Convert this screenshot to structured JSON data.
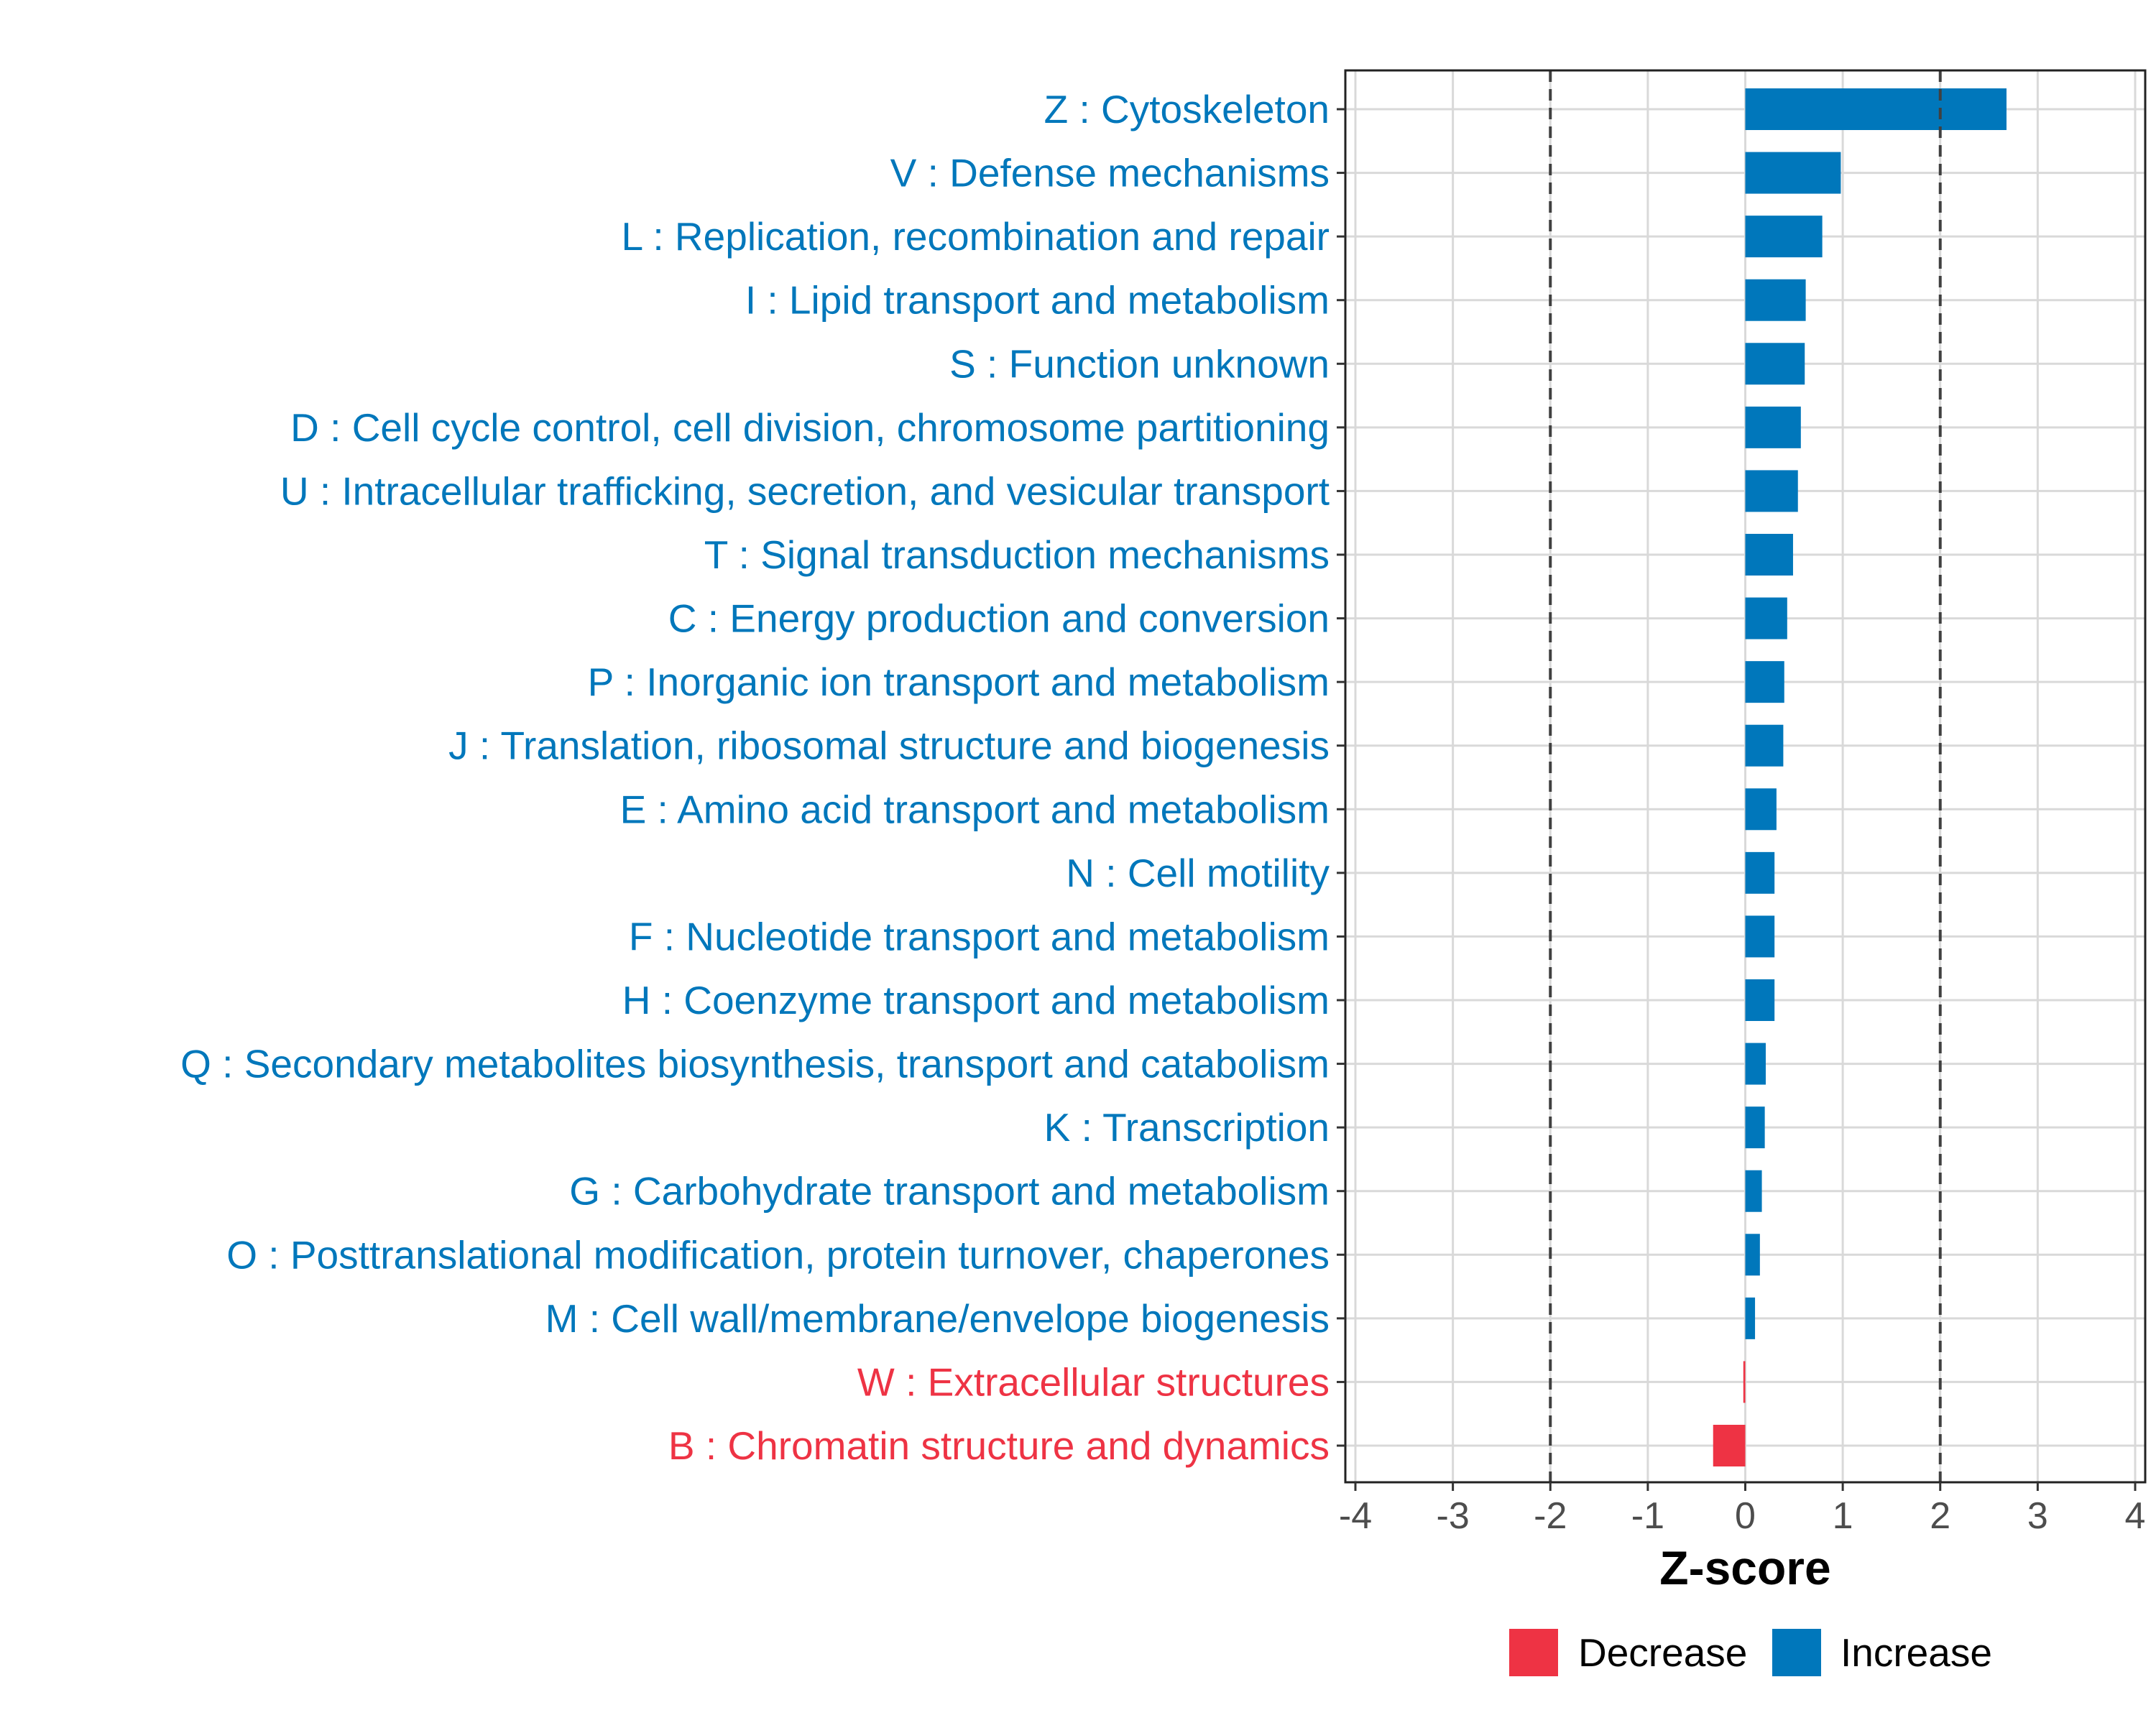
{
  "chart_data": {
    "type": "bar",
    "orientation": "horizontal",
    "xlabel": "Z-score",
    "ylabel": "",
    "xlim": [
      -4,
      4
    ],
    "x_ticks": [
      -4,
      -3,
      -2,
      -1,
      0,
      1,
      2,
      3,
      4
    ],
    "x_tick_labels": [
      "-4",
      "-3",
      "-2",
      "-1",
      "0",
      "1",
      "2",
      "3",
      "4"
    ],
    "grid": true,
    "reference_lines": [
      -2,
      2
    ],
    "colors": {
      "Increase": "#0077BB",
      "Decrease": "#EE3344"
    },
    "legend": {
      "position": "bottom",
      "entries": [
        {
          "label": "Decrease",
          "color": "#EE3344"
        },
        {
          "label": "Increase",
          "color": "#0077BB"
        }
      ]
    },
    "categories": [
      {
        "label": "Z : Cytoskeleton",
        "value": 2.68,
        "direction": "Increase"
      },
      {
        "label": "V : Defense mechanisms",
        "value": 0.98,
        "direction": "Increase"
      },
      {
        "label": "L : Replication, recombination and repair",
        "value": 0.79,
        "direction": "Increase"
      },
      {
        "label": "I : Lipid transport and metabolism",
        "value": 0.62,
        "direction": "Increase"
      },
      {
        "label": "S : Function unknown",
        "value": 0.61,
        "direction": "Increase"
      },
      {
        "label": "D : Cell cycle control, cell division, chromosome partitioning",
        "value": 0.57,
        "direction": "Increase"
      },
      {
        "label": "U : Intracellular trafficking, secretion, and vesicular transport",
        "value": 0.54,
        "direction": "Increase"
      },
      {
        "label": "T : Signal transduction mechanisms",
        "value": 0.49,
        "direction": "Increase"
      },
      {
        "label": "C : Energy production and conversion",
        "value": 0.43,
        "direction": "Increase"
      },
      {
        "label": "P : Inorganic ion transport and metabolism",
        "value": 0.4,
        "direction": "Increase"
      },
      {
        "label": "J : Translation, ribosomal structure and biogenesis",
        "value": 0.39,
        "direction": "Increase"
      },
      {
        "label": "E : Amino acid transport and metabolism",
        "value": 0.32,
        "direction": "Increase"
      },
      {
        "label": "N : Cell motility",
        "value": 0.3,
        "direction": "Increase"
      },
      {
        "label": "F : Nucleotide transport and metabolism",
        "value": 0.3,
        "direction": "Increase"
      },
      {
        "label": "H : Coenzyme transport and metabolism",
        "value": 0.3,
        "direction": "Increase"
      },
      {
        "label": "Q : Secondary metabolites biosynthesis, transport and catabolism",
        "value": 0.21,
        "direction": "Increase"
      },
      {
        "label": "K : Transcription",
        "value": 0.2,
        "direction": "Increase"
      },
      {
        "label": "G : Carbohydrate transport and metabolism",
        "value": 0.17,
        "direction": "Increase"
      },
      {
        "label": "O : Posttranslational modification, protein turnover, chaperones",
        "value": 0.15,
        "direction": "Increase"
      },
      {
        "label": "M : Cell wall/membrane/envelope biogenesis",
        "value": 0.1,
        "direction": "Increase"
      },
      {
        "label": "W : Extracellular structures",
        "value": -0.02,
        "direction": "Decrease"
      },
      {
        "label": "B : Chromatin structure and dynamics",
        "value": -0.33,
        "direction": "Decrease"
      }
    ]
  }
}
